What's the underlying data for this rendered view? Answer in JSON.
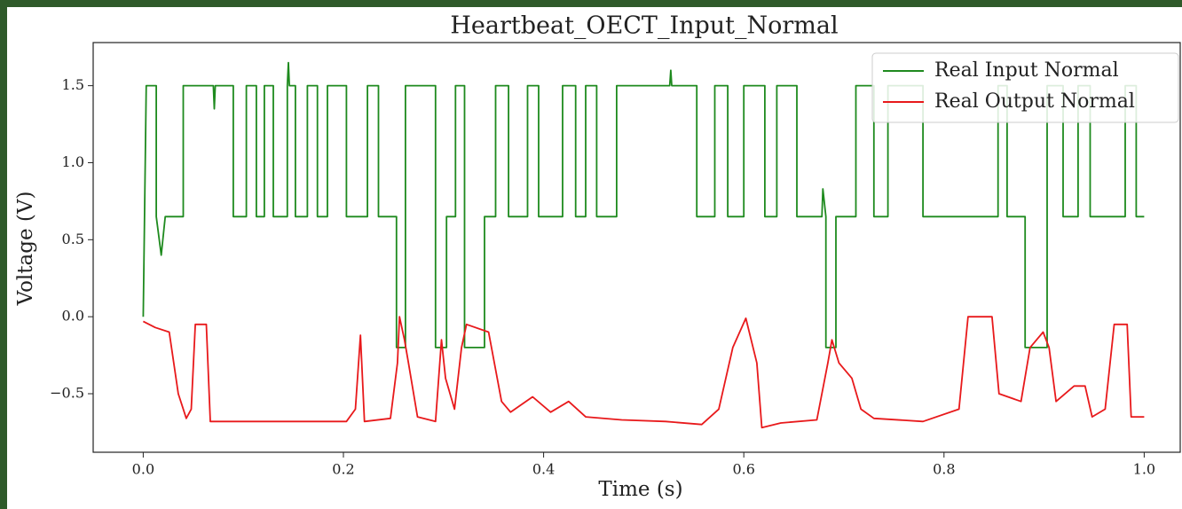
{
  "chart_data": {
    "type": "line",
    "title": "Heartbeat_OECT_Input_Normal",
    "x_label": "Time (s)",
    "y_label": "Voltage (V)",
    "xlim": [
      -0.05,
      1.036
    ],
    "ylim": [
      -0.88,
      1.78
    ],
    "xticks": [
      {
        "value": 0,
        "label": "0.0"
      },
      0.2,
      0.4,
      0.6,
      0.8,
      {
        "value": 1,
        "label": "1.0"
      }
    ],
    "yticks": [
      {
        "value": -0.5,
        "label": "−0.5"
      },
      {
        "value": 0,
        "label": "0.0"
      },
      0.5,
      {
        "value": 1,
        "label": "1.0"
      },
      1.5
    ],
    "legend": "upper right",
    "series": [
      {
        "name": "Real Input Normal",
        "color": "#1e8a1e",
        "x": [
          0,
          0.003,
          0.013,
          0.013,
          0.018,
          0.022,
          0.04,
          0.04,
          0.07,
          0.071,
          0.072,
          0.09,
          0.09,
          0.103,
          0.103,
          0.113,
          0.113,
          0.121,
          0.121,
          0.13,
          0.13,
          0.144,
          0.144,
          0.145,
          0.146,
          0.152,
          0.152,
          0.164,
          0.164,
          0.174,
          0.174,
          0.184,
          0.184,
          0.203,
          0.203,
          0.224,
          0.224,
          0.235,
          0.235,
          0.253,
          0.253,
          0.262,
          0.262,
          0.292,
          0.292,
          0.303,
          0.303,
          0.312,
          0.312,
          0.321,
          0.321,
          0.341,
          0.341,
          0.352,
          0.352,
          0.365,
          0.365,
          0.384,
          0.384,
          0.395,
          0.395,
          0.419,
          0.419,
          0.432,
          0.432,
          0.442,
          0.442,
          0.453,
          0.453,
          0.473,
          0.473,
          0.526,
          0.527,
          0.528,
          0.553,
          0.553,
          0.571,
          0.571,
          0.584,
          0.584,
          0.6,
          0.6,
          0.621,
          0.621,
          0.633,
          0.633,
          0.653,
          0.653,
          0.678,
          0.679,
          0.682,
          0.682,
          0.692,
          0.692,
          0.712,
          0.712,
          0.73,
          0.73,
          0.744,
          0.744,
          0.779,
          0.779,
          0.854,
          0.854,
          0.863,
          0.863,
          0.881,
          0.881,
          0.903,
          0.903,
          0.919,
          0.919,
          0.934,
          0.934,
          0.946,
          0.946,
          0.981,
          0.981,
          0.992,
          0.992,
          1.0
        ],
        "values": [
          0,
          1.5,
          1.5,
          0.65,
          0.4,
          0.65,
          0.65,
          1.5,
          1.5,
          1.35,
          1.5,
          1.5,
          0.65,
          0.65,
          1.5,
          1.5,
          0.65,
          0.65,
          1.5,
          1.5,
          0.65,
          0.65,
          1.5,
          1.65,
          1.5,
          1.5,
          0.65,
          0.65,
          1.5,
          1.5,
          0.65,
          0.65,
          1.5,
          1.5,
          0.65,
          0.65,
          1.5,
          1.5,
          0.65,
          0.65,
          -0.2,
          -0.2,
          1.5,
          1.5,
          -0.2,
          -0.2,
          0.65,
          0.65,
          1.5,
          1.5,
          -0.2,
          -0.2,
          0.65,
          0.65,
          1.5,
          1.5,
          0.65,
          0.65,
          1.5,
          1.5,
          0.65,
          0.65,
          1.5,
          1.5,
          0.65,
          0.65,
          1.5,
          1.5,
          0.65,
          0.65,
          1.5,
          1.5,
          1.6,
          1.5,
          1.5,
          0.65,
          0.65,
          1.5,
          1.5,
          0.65,
          0.65,
          1.5,
          1.5,
          0.65,
          0.65,
          1.5,
          1.5,
          0.65,
          0.65,
          0.83,
          0.65,
          -0.2,
          -0.2,
          0.65,
          0.65,
          1.5,
          1.5,
          0.65,
          0.65,
          1.5,
          1.5,
          0.65,
          0.65,
          1.5,
          1.5,
          0.65,
          0.65,
          -0.2,
          -0.2,
          1.5,
          1.5,
          0.65,
          0.65,
          1.5,
          1.5,
          0.65,
          0.65,
          1.5,
          1.5,
          0.65,
          0.65
        ]
      },
      {
        "name": "Real Output Normal",
        "color": "#e8191b",
        "x": [
          0,
          0.012,
          0.026,
          0.035,
          0.043,
          0.048,
          0.052,
          0.063,
          0.067,
          0.123,
          0.203,
          0.212,
          0.217,
          0.221,
          0.247,
          0.254,
          0.256,
          0.261,
          0.265,
          0.274,
          0.292,
          0.298,
          0.302,
          0.311,
          0.318,
          0.323,
          0.345,
          0.358,
          0.367,
          0.389,
          0.407,
          0.425,
          0.442,
          0.478,
          0.522,
          0.558,
          0.575,
          0.589,
          0.602,
          0.613,
          0.618,
          0.637,
          0.673,
          0.684,
          0.688,
          0.695,
          0.708,
          0.717,
          0.73,
          0.779,
          0.815,
          0.824,
          0.848,
          0.855,
          0.877,
          0.886,
          0.899,
          0.905,
          0.912,
          0.93,
          0.941,
          0.948,
          0.961,
          0.97,
          0.983,
          0.987,
          1.0
        ],
        "values": [
          -0.03,
          -0.07,
          -0.1,
          -0.5,
          -0.66,
          -0.6,
          -0.05,
          -0.05,
          -0.68,
          -0.68,
          -0.68,
          -0.6,
          -0.12,
          -0.68,
          -0.66,
          -0.3,
          0.0,
          -0.15,
          -0.3,
          -0.65,
          -0.68,
          -0.15,
          -0.4,
          -0.6,
          -0.2,
          -0.05,
          -0.1,
          -0.55,
          -0.62,
          -0.52,
          -0.62,
          -0.55,
          -0.65,
          -0.67,
          -0.68,
          -0.7,
          -0.6,
          -0.2,
          -0.01,
          -0.3,
          -0.72,
          -0.69,
          -0.67,
          -0.3,
          -0.15,
          -0.3,
          -0.4,
          -0.6,
          -0.66,
          -0.68,
          -0.6,
          0.0,
          0.0,
          -0.5,
          -0.55,
          -0.2,
          -0.1,
          -0.2,
          -0.55,
          -0.45,
          -0.45,
          -0.65,
          -0.6,
          -0.05,
          -0.05,
          -0.65,
          -0.65
        ]
      }
    ]
  }
}
